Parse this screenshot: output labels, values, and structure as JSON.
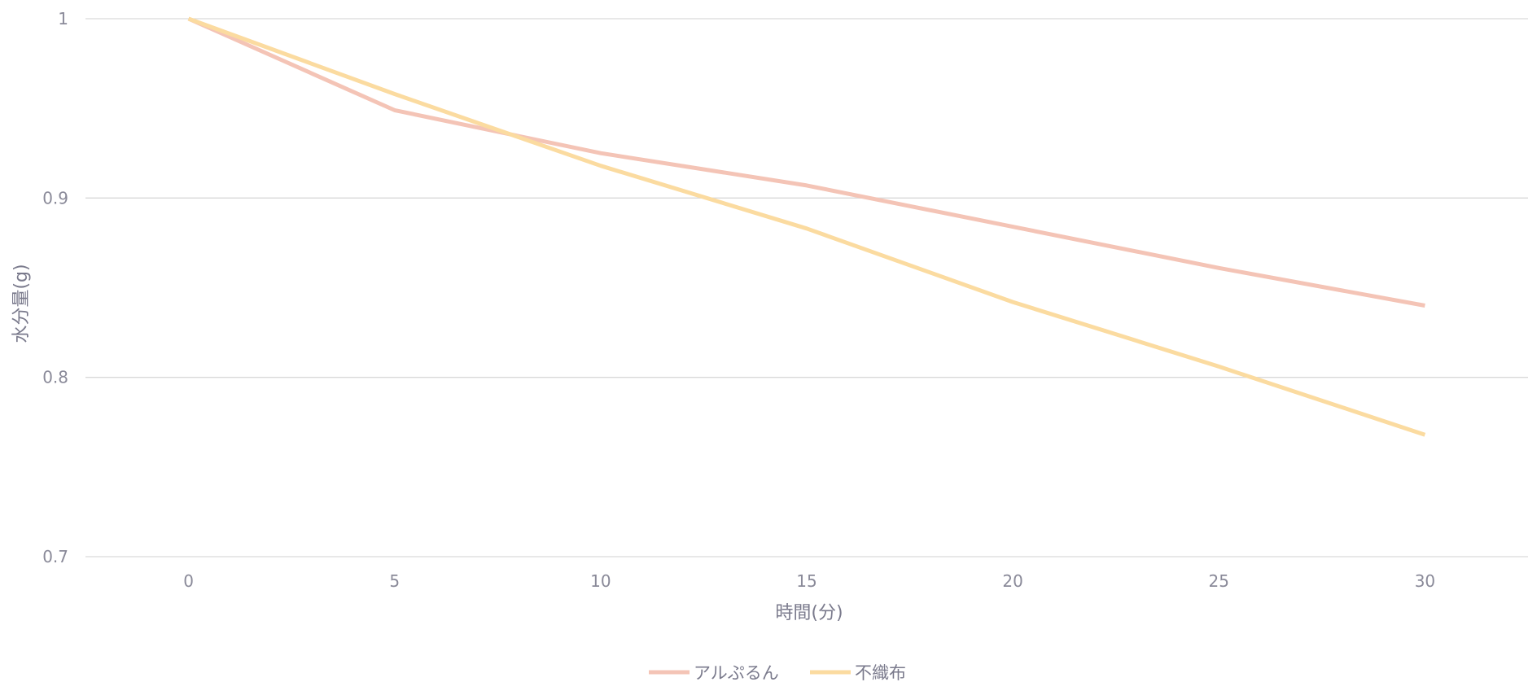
{
  "chart_data": {
    "type": "line",
    "x": [
      0,
      5,
      10,
      15,
      20,
      25,
      30
    ],
    "x_tick_labels": [
      "0",
      "5",
      "10",
      "15",
      "20",
      "25",
      "30"
    ],
    "y_tick_labels": [
      "1",
      "0.9",
      "0.8",
      "0.7"
    ],
    "ylim": [
      0.7,
      1.0
    ],
    "xlabel": "時間(分)",
    "ylabel": "水分量(g)",
    "grid": true,
    "legend_position": "bottom",
    "series": [
      {
        "name": "アルぷるん",
        "color": "#f4c4b6",
        "values": [
          1.0,
          0.949,
          0.925,
          0.907,
          0.884,
          0.861,
          0.84
        ]
      },
      {
        "name": "不織布",
        "color": "#fbdba0",
        "values": [
          1.0,
          0.958,
          0.918,
          0.883,
          0.842,
          0.806,
          0.768
        ]
      }
    ]
  }
}
